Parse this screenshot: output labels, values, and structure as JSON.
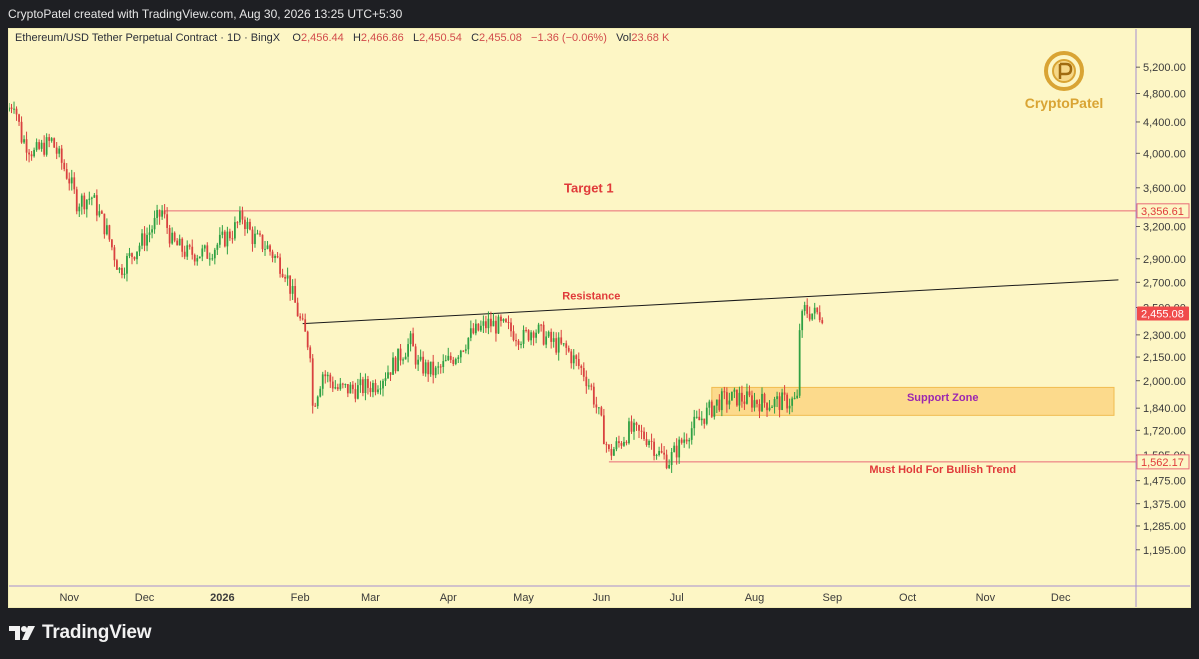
{
  "header": {
    "credit": "CryptoPatel created with TradingView.com, Aug 30, 2026 13:25 UTC+5:30"
  },
  "legend": {
    "symbol": "Ethereum/USD Tether Perpetual Contract · 1D · BingX",
    "o_label": "O",
    "o": "2,456.44",
    "h_label": "H",
    "h": "2,466.86",
    "l_label": "L",
    "l": "2,450.54",
    "c_label": "C",
    "c": "2,455.08",
    "change": "−1.36 (−0.06%)",
    "vol_label": "Vol",
    "vol": "23.68 K"
  },
  "logo": {
    "text": "CryptoPatel",
    "icon": "crypto-patel-coin-icon"
  },
  "footer": {
    "brand": "TradingView",
    "icon": "tradingview-logo-icon"
  },
  "colors": {
    "background": "#fdf6c5",
    "up": "#2ea043",
    "down": "#d9413f",
    "target": "#e86a78",
    "support_fill": "#fcd98a",
    "resistance_line": "#1a1a1a",
    "annotation_red": "#e03a3a",
    "support_text": "#9c27b0",
    "axis_text": "#3b3b3b",
    "last_price_bg": "#f04b4b"
  },
  "chart_data": {
    "type": "candlestick",
    "title": "Ethereum/USD Tether Perpetual Contract · 1D · BingX",
    "y_scale": "log",
    "ylim": [
      1100,
      5700
    ],
    "x_range": [
      "2025-10-08",
      "2026-12-31"
    ],
    "y_ticks": [
      5200,
      4800,
      4400,
      4000,
      3600,
      3200,
      2900,
      2700,
      2500,
      2300,
      2150,
      2000,
      1840,
      1720,
      1595,
      1475,
      1375,
      1285,
      1195
    ],
    "y_tick_labels": [
      "5,200.00",
      "4,800.00",
      "4,400.00",
      "4,000.00",
      "3,600.00",
      "3,200.00",
      "2,900.00",
      "2,700.00",
      "2,500.00",
      "2,300.00",
      "2,150.00",
      "2,000.00",
      "1,840.00",
      "1,720.00",
      "1,595.00",
      "1,475.00",
      "1,375.00",
      "1,285.00",
      "1,195.00"
    ],
    "x_ticks": [
      {
        "label": "Nov",
        "date": "2025-11-01"
      },
      {
        "label": "Dec",
        "date": "2025-12-01"
      },
      {
        "label": "2026",
        "date": "2026-01-01",
        "bold": true
      },
      {
        "label": "Feb",
        "date": "2026-02-01"
      },
      {
        "label": "Mar",
        "date": "2026-03-01"
      },
      {
        "label": "Apr",
        "date": "2026-04-01"
      },
      {
        "label": "May",
        "date": "2026-05-01"
      },
      {
        "label": "Jun",
        "date": "2026-06-01"
      },
      {
        "label": "Jul",
        "date": "2026-07-01"
      },
      {
        "label": "Aug",
        "date": "2026-08-01"
      },
      {
        "label": "Sep",
        "date": "2026-09-01"
      },
      {
        "label": "Oct",
        "date": "2026-10-01"
      },
      {
        "label": "Nov",
        "date": "2026-11-01"
      },
      {
        "label": "Dec",
        "date": "2026-12-01"
      }
    ],
    "anchors": [
      [
        "2025-10-08",
        4600
      ],
      [
        "2025-10-10",
        4700
      ],
      [
        "2025-10-13",
        4200
      ],
      [
        "2025-10-18",
        4000
      ],
      [
        "2025-10-25",
        4150
      ],
      [
        "2025-10-28",
        3950
      ],
      [
        "2025-11-01",
        3700
      ],
      [
        "2025-11-04",
        3450
      ],
      [
        "2025-11-10",
        3500
      ],
      [
        "2025-11-16",
        3150
      ],
      [
        "2025-11-21",
        2800
      ],
      [
        "2025-11-28",
        3000
      ],
      [
        "2025-12-03",
        3150
      ],
      [
        "2025-12-08",
        3350
      ],
      [
        "2025-12-12",
        3050
      ],
      [
        "2025-12-18",
        2950
      ],
      [
        "2025-12-26",
        2950
      ],
      [
        "2026-01-05",
        3150
      ],
      [
        "2026-01-09",
        3300
      ],
      [
        "2026-01-13",
        3100
      ],
      [
        "2026-01-19",
        3000
      ],
      [
        "2026-01-26",
        2800
      ],
      [
        "2026-02-01",
        2400
      ],
      [
        "2026-02-05",
        2200
      ],
      [
        "2026-02-06",
        1850
      ],
      [
        "2026-02-10",
        2050
      ],
      [
        "2026-02-16",
        1950
      ],
      [
        "2026-02-24",
        1950
      ],
      [
        "2026-03-03",
        1980
      ],
      [
        "2026-03-10",
        2100
      ],
      [
        "2026-03-17",
        2250
      ],
      [
        "2026-03-20",
        2100
      ],
      [
        "2026-03-27",
        2050
      ],
      [
        "2026-04-03",
        2150
      ],
      [
        "2026-04-10",
        2300
      ],
      [
        "2026-04-17",
        2380
      ],
      [
        "2026-04-24",
        2350
      ],
      [
        "2026-05-01",
        2280
      ],
      [
        "2026-05-05",
        2350
      ],
      [
        "2026-05-12",
        2250
      ],
      [
        "2026-05-18",
        2200
      ],
      [
        "2026-05-25",
        2050
      ],
      [
        "2026-05-28",
        1950
      ],
      [
        "2026-06-01",
        1750
      ],
      [
        "2026-06-04",
        1600
      ],
      [
        "2026-06-08",
        1650
      ],
      [
        "2026-06-12",
        1720
      ],
      [
        "2026-06-16",
        1700
      ],
      [
        "2026-06-20",
        1680
      ],
      [
        "2026-06-24",
        1600
      ],
      [
        "2026-06-28",
        1570
      ],
      [
        "2026-07-02",
        1640
      ],
      [
        "2026-07-06",
        1720
      ],
      [
        "2026-07-12",
        1800
      ],
      [
        "2026-07-18",
        1880
      ],
      [
        "2026-07-25",
        1900
      ],
      [
        "2026-08-01",
        1880
      ],
      [
        "2026-08-08",
        1870
      ],
      [
        "2026-08-15",
        1880
      ],
      [
        "2026-08-18",
        1880
      ],
      [
        "2026-08-19",
        2350
      ],
      [
        "2026-08-21",
        2480
      ],
      [
        "2026-08-25",
        2450
      ],
      [
        "2026-08-28",
        2455
      ]
    ],
    "levels": [
      {
        "name": "Target 1",
        "value": 3356.61,
        "value_label": "3,356.61",
        "from": "2025-12-09"
      },
      {
        "name": "Must Hold For Bullish Trend",
        "value": 1562.17,
        "value_label": "1,562.17",
        "from": "2026-06-04"
      }
    ],
    "last_price": {
      "value": 2455.08,
      "label": "2,455.08"
    },
    "resistance": {
      "label": "Resistance",
      "from": [
        "2026-02-02",
        2380
      ],
      "to": [
        "2026-12-24",
        2720
      ]
    },
    "support_zone": {
      "label": "Support Zone",
      "from": "2026-07-15",
      "to": "2026-12-31",
      "top": 1960,
      "bottom": 1800
    },
    "annotations": [
      {
        "text": "Target 1",
        "date": "2026-05-27",
        "value": 3550
      },
      {
        "text": "Resistance",
        "date": "2026-05-28",
        "value": 2560
      },
      {
        "text": "Support Zone",
        "date": "2026-10-15",
        "value": 1880
      },
      {
        "text": "Must Hold For Bullish Trend",
        "date": "2026-10-15",
        "value": 1510
      }
    ]
  }
}
